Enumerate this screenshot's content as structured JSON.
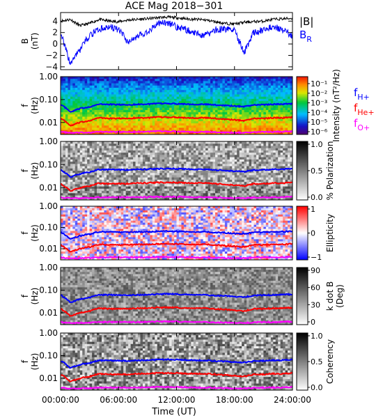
{
  "title": "ACE Mag 2018−301",
  "colors": {
    "B_total": "#000000",
    "B_R": "#0000ff",
    "f_H": "#0000ff",
    "f_He": "#ff0000",
    "f_O": "#ff00ff"
  },
  "chart_data": [
    {
      "type": "line",
      "panel": "B",
      "ylabel": "B",
      "yunit": "(nT)",
      "ylim": [
        -4.5,
        5.5
      ],
      "yticks": [
        "4",
        "2",
        "0",
        "−2",
        "−4"
      ],
      "yticks_values": [
        4,
        2,
        0,
        -2,
        -4
      ],
      "legend": [
        "|B|",
        "B"
      ],
      "legend_sub": [
        "",
        "R"
      ],
      "legend_placement": "right",
      "x_hours": [
        0,
        1,
        2,
        3,
        4,
        5,
        6,
        7,
        8,
        9,
        10,
        11,
        12,
        13,
        14,
        15,
        16,
        17,
        18,
        19,
        20,
        21,
        22,
        23,
        24
      ],
      "series": [
        {
          "name": "|B|",
          "values": [
            4.0,
            4.3,
            3.2,
            3.6,
            4.3,
            4.0,
            3.9,
            4.2,
            4.3,
            4.4,
            4.6,
            4.7,
            4.6,
            4.4,
            4.3,
            4.2,
            3.9,
            3.6,
            3.5,
            3.8,
            3.9,
            4.0,
            4.3,
            4.4,
            4.5
          ]
        },
        {
          "name": "B_R",
          "values": [
            2.0,
            -3.5,
            -1.0,
            1.5,
            2.5,
            3.0,
            2.5,
            0.3,
            1.5,
            2.0,
            3.5,
            3.8,
            3.0,
            2.5,
            1.8,
            1.5,
            2.5,
            2.6,
            2.4,
            -1.5,
            2.0,
            2.5,
            3.0,
            2.5,
            1.3
          ]
        }
      ]
    },
    {
      "type": "heatmap",
      "panel": "power",
      "ylabel": "f",
      "yunit": "(Hz)",
      "yscale": "log",
      "ylim": [
        0.003,
        1.0
      ],
      "yticks": [
        "1.00",
        "0.10",
        "0.01"
      ],
      "colorbar_label": "Intensity (nT²/Hz)",
      "colorbar_ticks": [
        "10⁻¹",
        "10⁻²",
        "10⁻³",
        "10⁻⁴",
        "10⁻⁵",
        "10⁻⁶"
      ],
      "legend": [
        "f",
        "f",
        "f"
      ],
      "legend_sub": [
        "H+",
        "He+",
        "O+"
      ]
    },
    {
      "type": "heatmap",
      "panel": "polarization",
      "ylabel": "f",
      "yunit": "(Hz)",
      "yscale": "log",
      "ylim": [
        0.003,
        1.0
      ],
      "yticks": [
        "1.00",
        "0.10",
        "0.01"
      ],
      "colorbar_label": "% Polarization",
      "colorbar_ticks": [
        "1.0",
        "0.5",
        "0.0"
      ],
      "colorbar_range": [
        0,
        1
      ]
    },
    {
      "type": "heatmap",
      "panel": "ellipticity",
      "ylabel": "f",
      "yunit": "(Hz)",
      "yscale": "log",
      "ylim": [
        0.003,
        1.0
      ],
      "yticks": [
        "1.00",
        "0.10",
        "0.01"
      ],
      "colorbar_label": "Ellipticity",
      "colorbar_ticks": [
        "1",
        "0",
        "−1"
      ],
      "colorbar_range": [
        -1,
        1
      ]
    },
    {
      "type": "heatmap",
      "panel": "kdotb",
      "ylabel": "f",
      "yunit": "(Hz)",
      "yscale": "log",
      "ylim": [
        0.003,
        1.0
      ],
      "yticks": [
        "1.00",
        "0.10",
        "0.01"
      ],
      "colorbar_label": "k dot B",
      "colorbar_label2": "(Deg)",
      "colorbar_ticks": [
        "90",
        "60",
        "30",
        "0"
      ],
      "colorbar_range": [
        0,
        90
      ]
    },
    {
      "type": "heatmap",
      "panel": "coherency",
      "ylabel": "f",
      "yunit": "(Hz)",
      "yscale": "log",
      "ylim": [
        0.003,
        1.0
      ],
      "yticks": [
        "1.00",
        "0.10",
        "0.01"
      ],
      "colorbar_label": "Coherency",
      "colorbar_ticks": [
        "1.0",
        "0.5",
        "0.0"
      ],
      "colorbar_range": [
        0,
        1
      ]
    }
  ],
  "gyrofrequency_lines": {
    "x_hours": [
      0,
      1,
      2,
      3,
      4,
      5,
      6,
      7,
      8,
      9,
      10,
      11,
      12,
      13,
      14,
      15,
      16,
      17,
      18,
      19,
      20,
      21,
      22,
      23,
      24
    ],
    "f_H+": [
      0.06,
      0.028,
      0.04,
      0.048,
      0.062,
      0.062,
      0.06,
      0.059,
      0.062,
      0.063,
      0.066,
      0.068,
      0.066,
      0.064,
      0.062,
      0.062,
      0.058,
      0.056,
      0.052,
      0.05,
      0.058,
      0.06,
      0.062,
      0.064,
      0.066
    ],
    "f_He+": [
      0.015,
      0.007,
      0.01,
      0.012,
      0.016,
      0.015,
      0.015,
      0.015,
      0.016,
      0.016,
      0.017,
      0.017,
      0.017,
      0.016,
      0.016,
      0.016,
      0.015,
      0.014,
      0.013,
      0.012,
      0.015,
      0.015,
      0.016,
      0.016,
      0.017
    ],
    "f_O+": [
      0.0039,
      0.0035,
      0.0036,
      0.0037,
      0.0039,
      0.0039,
      0.0039,
      0.0039,
      0.0039,
      0.004,
      0.0041,
      0.0041,
      0.0041,
      0.004,
      0.0039,
      0.0039,
      0.0038,
      0.0037,
      0.0036,
      0.0036,
      0.0038,
      0.0039,
      0.0039,
      0.004,
      0.0041
    ]
  },
  "x_axis": {
    "label": "Time (UT)",
    "ticks": [
      "00:00:00",
      "06:00:00",
      "12:00:00",
      "18:00:00",
      "24:00:00"
    ],
    "tick_hours": [
      0,
      6,
      12,
      18,
      24
    ],
    "range_hours": [
      0,
      24
    ]
  }
}
